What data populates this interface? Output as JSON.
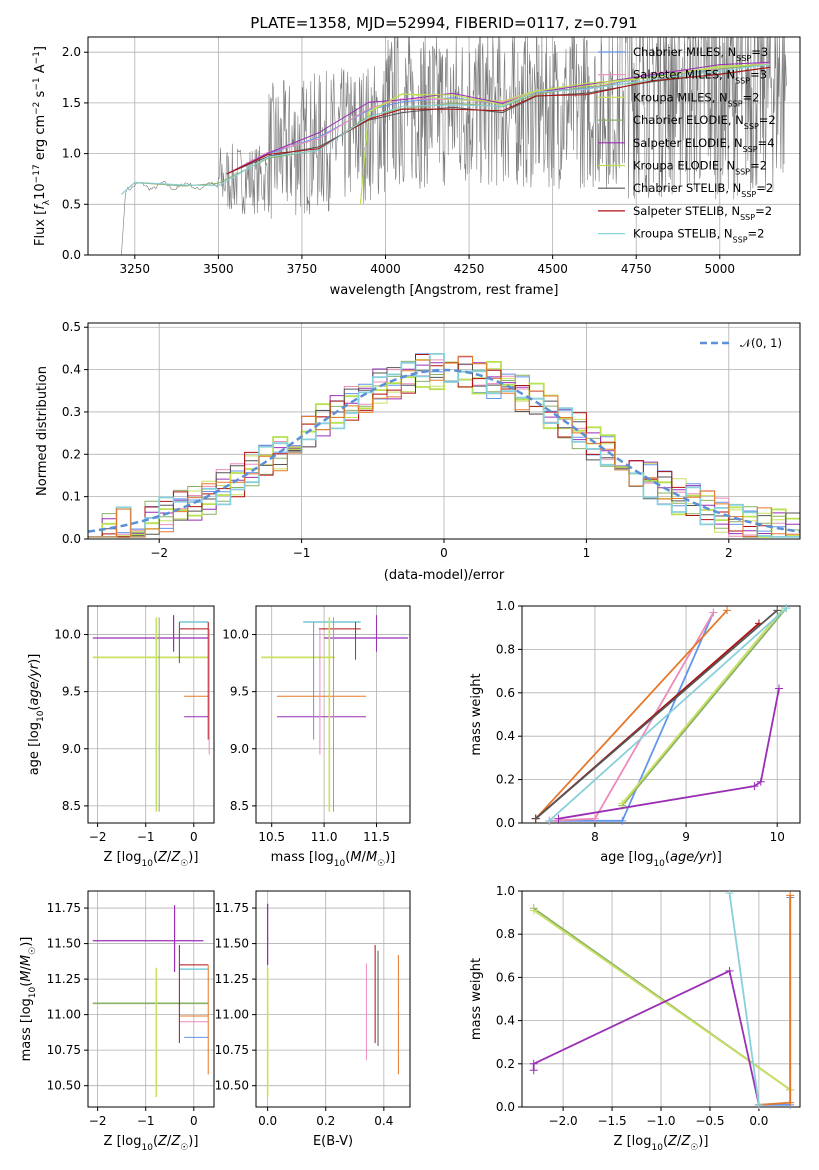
{
  "colors": {
    "chabrier_miles": "#6495ed",
    "salpeter_miles": "#ec8cbc",
    "kroupa_miles": "#c9e060",
    "chabrier_elodie": "#8ab06a",
    "salpeter_elodie": "#9a2fb6",
    "kroupa_elodie": "#b9e050",
    "chabrier_stelib": "#555555",
    "salpeter_stelib": "#b01010",
    "kroupa_stelib": "#88d0dc",
    "orange": "#e5782a",
    "data_gray": "#7a7a7a",
    "normal_curve": "#5b8fd6",
    "grid": "#b0b0b0"
  },
  "spectrum_panel": {
    "title": "PLATE=1358, MJD=52994, FIBERID=0117, z=0.791",
    "ylabel": "Flux [f_λ 10^-17 erg cm^-2 s^-1 A^-1]",
    "ylabel_parts": [
      "Flux [",
      "f",
      "λ",
      "10",
      "−17",
      " erg cm",
      "−2",
      " s",
      "−1",
      " A",
      "−1",
      "]"
    ],
    "xlabel": "wavelength [Angstrom, rest frame]",
    "xticks": [
      "3250",
      "3500",
      "3750",
      "4000",
      "4250",
      "4500",
      "4750",
      "5000"
    ],
    "yticks": [
      "0.0",
      "0.5",
      "1.0",
      "1.5",
      "2.0"
    ],
    "legend": [
      {
        "label": "Chabrier MILES, N",
        "sub": "SSP",
        "tail": "=3",
        "color": "#6495ed"
      },
      {
        "label": "Salpeter MILES, N",
        "sub": "SSP",
        "tail": "=3",
        "color": "#ec8cbc"
      },
      {
        "label": "Kroupa MILES, N",
        "sub": "SSP",
        "tail": "=2",
        "color": "#c9e060"
      },
      {
        "label": "Chabrier ELODIE, N",
        "sub": "SSP",
        "tail": "=2",
        "color": "#8ab06a"
      },
      {
        "label": "Salpeter ELODIE, N",
        "sub": "SSP",
        "tail": "=4",
        "color": "#9a2fb6"
      },
      {
        "label": "Kroupa ELODIE, N",
        "sub": "SSP",
        "tail": "=2",
        "color": "#b9e050"
      },
      {
        "label": "Chabrier STELIB, N",
        "sub": "SSP",
        "tail": "=2",
        "color": "#555555"
      },
      {
        "label": "Salpeter STELIB, N",
        "sub": "SSP",
        "tail": "=2",
        "color": "#b01010"
      },
      {
        "label": "Kroupa STELIB, N",
        "sub": "SSP",
        "tail": "=2",
        "color": "#88d0dc"
      }
    ]
  },
  "residual_panel": {
    "ylabel": "Normed distribution",
    "xlabel": "(data-model)/error",
    "xticks": [
      "−2",
      "−1",
      "0",
      "1",
      "2"
    ],
    "yticks": [
      "0.0",
      "0.1",
      "0.2",
      "0.3",
      "0.4",
      "0.5"
    ],
    "legend_label": "𝒩(0, 1)"
  },
  "age_z_panel": {
    "ylabel": "age  [log10(age/yr)]",
    "xlabel": "Z [log10(Z/Z☉)]",
    "xticks": [
      "−2",
      "−1",
      "0"
    ],
    "yticks": [
      "8.5",
      "9.0",
      "9.5",
      "10.0"
    ]
  },
  "age_mass_panel": {
    "xlabel": "mass [log10(M/M☉)]",
    "xticks": [
      "10.5",
      "11.0",
      "11.5"
    ],
    "yticks": [
      "8.5",
      "9.0",
      "9.5",
      "10.0"
    ]
  },
  "weight_age_panel": {
    "ylabel": "mass weight",
    "xlabel": "age  [log10(age/yr)]",
    "xticks": [
      "8",
      "9",
      "10"
    ],
    "yticks": [
      "0.0",
      "0.2",
      "0.4",
      "0.6",
      "0.8",
      "1.0"
    ]
  },
  "mass_z_panel": {
    "ylabel": "mass [log10(M/M☉)]",
    "xlabel": "Z [log10(Z/Z☉)]",
    "xticks": [
      "−2",
      "−1",
      "0"
    ],
    "yticks": [
      "10.50",
      "10.75",
      "11.00",
      "11.25",
      "11.50",
      "11.75"
    ]
  },
  "mass_ebv_panel": {
    "xlabel": "E(B-V)",
    "xticks": [
      "0.0",
      "0.2",
      "0.4"
    ],
    "yticks": [
      "10.50",
      "10.75",
      "11.00",
      "11.25",
      "11.50",
      "11.75"
    ]
  },
  "weight_z_panel": {
    "ylabel": "mass weight",
    "xlabel": "Z [log10(Z/Z☉)]",
    "xticks": [
      "−2.0",
      "−1.5",
      "−1.0",
      "−0.5",
      "0.0"
    ],
    "yticks": [
      "0.0",
      "0.2",
      "0.4",
      "0.6",
      "0.8",
      "1.0"
    ]
  },
  "chart_data": [
    {
      "type": "line",
      "title": "PLATE=1358, MJD=52994, FIBERID=0117, z=0.791",
      "xlabel": "wavelength [Angstrom, rest frame]",
      "xlim": [
        3110,
        5240
      ],
      "ylim": [
        0,
        2.15
      ],
      "series": [
        {
          "name": "Chabrier MILES, N_SSP=3",
          "x": [
            3525,
            3650,
            3800,
            3950,
            4050,
            4200,
            4350,
            4450,
            4600,
            4800,
            5000,
            5150
          ],
          "y": [
            0.8,
            1.0,
            1.15,
            1.45,
            1.5,
            1.55,
            1.5,
            1.6,
            1.65,
            1.75,
            1.85,
            1.9
          ]
        },
        {
          "name": "Salpeter MILES, N_SSP=3",
          "x": [
            3525,
            3650,
            3800,
            3950,
            4050,
            4200,
            4350,
            4450,
            4600,
            4800,
            5000,
            5150
          ],
          "y": [
            0.8,
            1.0,
            1.15,
            1.45,
            1.52,
            1.55,
            1.5,
            1.6,
            1.65,
            1.78,
            1.85,
            1.9
          ]
        },
        {
          "name": "Kroupa MILES, N_SSP=2",
          "x": [
            3925,
            3950,
            4050,
            4200,
            4350,
            4450,
            4600,
            4800,
            5000,
            5150
          ],
          "y": [
            0.5,
            1.4,
            1.58,
            1.55,
            1.5,
            1.62,
            1.68,
            1.75,
            1.85,
            1.88
          ]
        },
        {
          "name": "Chabrier ELODIE, N_SSP=2",
          "x": [
            3210,
            3250,
            3400,
            3500,
            3650,
            3800,
            3950,
            4050,
            4200,
            4350,
            4450,
            4600,
            4800,
            5000,
            5150
          ],
          "y": [
            0.6,
            0.7,
            0.7,
            0.7,
            0.95,
            1.05,
            1.35,
            1.45,
            1.5,
            1.45,
            1.6,
            1.65,
            1.72,
            1.82,
            1.88
          ]
        },
        {
          "name": "Salpeter ELODIE, N_SSP=4",
          "x": [
            3525,
            3650,
            3800,
            3950,
            4050,
            4200,
            4350,
            4450,
            4600,
            4800,
            5000,
            5150
          ],
          "y": [
            0.8,
            1.02,
            1.2,
            1.5,
            1.55,
            1.58,
            1.5,
            1.62,
            1.66,
            1.8,
            1.86,
            1.9
          ]
        },
        {
          "name": "Kroupa ELODIE, N_SSP=2",
          "x": [
            3925,
            3950,
            4050,
            4200,
            4350,
            4450,
            4600,
            4800,
            5000,
            5150
          ],
          "y": [
            0.5,
            1.42,
            1.6,
            1.56,
            1.5,
            1.62,
            1.68,
            1.76,
            1.86,
            1.88
          ]
        },
        {
          "name": "Chabrier STELIB, N_SSP=2",
          "x": [
            3525,
            3650,
            3800,
            3950,
            4050,
            4200,
            4350,
            4450,
            4600,
            4800,
            5000,
            5150
          ],
          "y": [
            0.8,
            0.98,
            1.05,
            1.35,
            1.4,
            1.45,
            1.42,
            1.55,
            1.6,
            1.7,
            1.8,
            1.85
          ]
        },
        {
          "name": "Salpeter STELIB, N_SSP=2",
          "x": [
            3525,
            3650,
            3800,
            3950,
            4050,
            4200,
            4350,
            4450,
            4600,
            4800,
            5000,
            5150
          ],
          "y": [
            0.8,
            0.98,
            1.05,
            1.35,
            1.42,
            1.45,
            1.42,
            1.55,
            1.6,
            1.7,
            1.8,
            1.85
          ]
        },
        {
          "name": "Kroupa STELIB, N_SSP=2",
          "x": [
            3210,
            3250,
            3400,
            3500,
            3650,
            3800,
            3950,
            4050,
            4200,
            4350,
            4450,
            4600,
            4800,
            5000,
            5150
          ],
          "y": [
            0.6,
            0.7,
            0.7,
            0.7,
            0.95,
            1.05,
            1.35,
            1.45,
            1.5,
            1.45,
            1.6,
            1.65,
            1.72,
            1.82,
            1.88
          ]
        }
      ]
    },
    {
      "type": "line",
      "xlabel": "(data-model)/error",
      "ylabel": "Normed distribution",
      "xlim": [
        -2.5,
        2.5
      ],
      "ylim": [
        0,
        0.51
      ],
      "series": [
        {
          "name": "𝒩(0, 1)",
          "x": [
            -2.5,
            -2,
            -1.5,
            -1,
            -0.5,
            0,
            0.5,
            1,
            1.5,
            2,
            2.5
          ],
          "y": [
            0.018,
            0.054,
            0.13,
            0.242,
            0.352,
            0.399,
            0.352,
            0.242,
            0.13,
            0.054,
            0.018
          ]
        }
      ]
    },
    {
      "type": "scatter",
      "xlabel": "age  [log10(age/yr)]",
      "ylabel": "mass weight",
      "xlim": [
        7.2,
        10.25
      ],
      "ylim": [
        0,
        1
      ],
      "series": [
        {
          "x": [
            7.5,
            8.3,
            9.3
          ],
          "y": [
            0.01,
            0.01,
            0.97
          ]
        },
        {
          "x": [
            7.5,
            8.0,
            9.3
          ],
          "y": [
            0.01,
            0.02,
            0.97
          ]
        },
        {
          "x": [
            8.3,
            10.1
          ],
          "y": [
            0.08,
            0.99
          ]
        },
        {
          "x": [
            8.3,
            10.05
          ],
          "y": [
            0.09,
            0.98
          ]
        },
        {
          "x": [
            7.6,
            9.75,
            9.82,
            10.02
          ],
          "y": [
            0.02,
            0.17,
            0.19,
            0.62
          ]
        },
        {
          "x": [
            7.35,
            9.45
          ],
          "y": [
            0.02,
            0.98
          ]
        },
        {
          "x": [
            7.35,
            9.8
          ],
          "y": [
            0.02,
            0.92
          ]
        },
        {
          "x": [
            7.35,
            10.0
          ],
          "y": [
            0.02,
            0.98
          ]
        },
        {
          "x": [
            7.5,
            10.1
          ],
          "y": [
            0.01,
            0.99
          ]
        }
      ]
    },
    {
      "type": "scatter",
      "xlabel": "Z [log10(Z/Z☉)]",
      "ylabel": "mass weight",
      "xlim": [
        -2.42,
        0.42
      ],
      "ylim": [
        0,
        1
      ],
      "series": [
        {
          "x": [
            0.0,
            0.32,
            0.32
          ],
          "y": [
            0.01,
            0.01,
            0.97
          ]
        },
        {
          "x": [
            -2.3,
            0.32
          ],
          "y": [
            0.92,
            0.08
          ]
        },
        {
          "x": [
            -2.3,
            0.32
          ],
          "y": [
            0.91,
            0.08
          ]
        },
        {
          "x": [
            -2.3,
            -2.3,
            -0.3,
            0.0
          ],
          "y": [
            0.17,
            0.2,
            0.63,
            0.01
          ]
        },
        {
          "x": [
            0.0,
            0.32,
            0.32
          ],
          "y": [
            0.01,
            0.02,
            0.98
          ]
        },
        {
          "x": [
            -0.3,
            0.0
          ],
          "y": [
            0.99,
            0.01
          ]
        }
      ]
    }
  ]
}
